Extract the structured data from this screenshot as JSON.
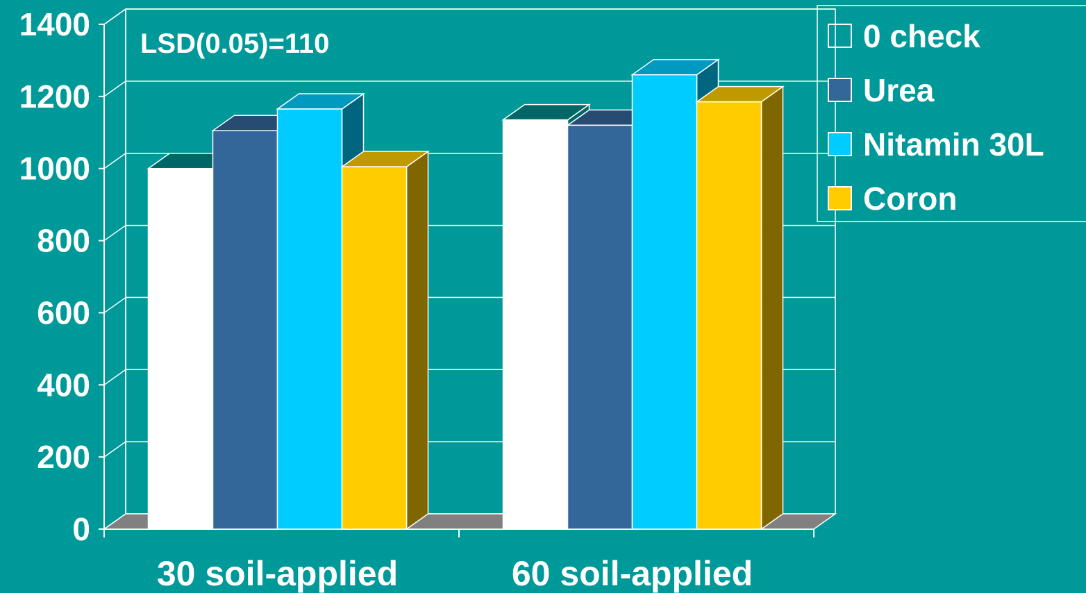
{
  "chart_data": {
    "type": "bar",
    "categories": [
      "30 soil-applied",
      "60 soil-applied"
    ],
    "series": [
      {
        "name": "0 check",
        "values": [
          1000,
          1135
        ],
        "color": "#ffffff",
        "top": "#006666",
        "side": "#006666",
        "legend_fill": "none"
      },
      {
        "name": "Urea",
        "values": [
          1105,
          1120
        ],
        "color": "#336699",
        "top": "#264c73",
        "side": "#264c73",
        "legend_fill": "#336699"
      },
      {
        "name": "Nitamin 30L",
        "values": [
          1165,
          1260
        ],
        "color": "#00ccff",
        "top": "#0099bf",
        "side": "#006680",
        "legend_fill": "#00ccff"
      },
      {
        "name": "Coron",
        "values": [
          1005,
          1185
        ],
        "color": "#ffcc00",
        "top": "#bf9900",
        "side": "#806600",
        "legend_fill": "#ffcc00"
      }
    ],
    "ylim": [
      0,
      1400
    ],
    "yticks": [
      0,
      200,
      400,
      600,
      800,
      1000,
      1200,
      1400
    ],
    "annotation": "LSD(0.05)=110",
    "grid": true,
    "legend_position": "top-right",
    "title": "",
    "xlabel": "",
    "ylabel": "",
    "colors": {
      "background": "#009999",
      "floor": "#808080",
      "lines": "#ffffff"
    }
  }
}
